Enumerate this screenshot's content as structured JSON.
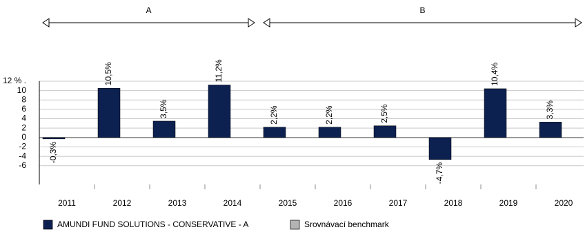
{
  "chart_data": {
    "type": "bar",
    "periods": [
      "A",
      "B"
    ],
    "categories": [
      "2011",
      "2012",
      "2013",
      "2014",
      "2015",
      "2016",
      "2017",
      "2018",
      "2019",
      "2020"
    ],
    "series": [
      {
        "name": "AMUNDI FUND SOLUTIONS - CONSERVATIVE - A",
        "color": "#0c2150",
        "values": [
          -0.3,
          10.5,
          3.5,
          11.2,
          2.2,
          2.2,
          2.5,
          -4.7,
          10.4,
          3.3
        ],
        "value_labels": [
          "-0,3%",
          "10,5%",
          "3,5%",
          "11,2%",
          "2,2%",
          "2,2%",
          "2,5%",
          "-4,7%",
          "10,4%",
          "3,3%"
        ]
      },
      {
        "name": "Srovnávací benchmark",
        "color": "#b4b4b4",
        "values": [
          null,
          null,
          null,
          null,
          null,
          null,
          null,
          null,
          null,
          null
        ]
      }
    ],
    "ylim": [
      -10,
      12
    ],
    "yticks": [
      {
        "value": 12,
        "label": "12 % ."
      },
      10,
      8,
      6,
      4,
      2,
      0,
      -2,
      -4,
      -6
    ],
    "grid": true
  }
}
